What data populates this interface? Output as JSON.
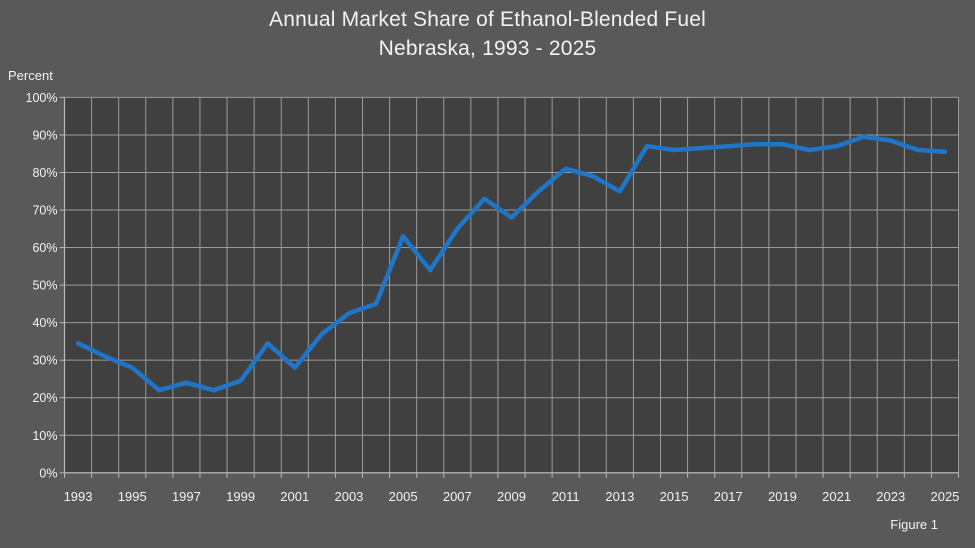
{
  "title": {
    "line1": "Annual Market Share of Ethanol-Blended Fuel",
    "line2": "Nebraska, 1993 - 2025"
  },
  "y_axis_label": "Percent",
  "figure_caption": "Figure 1",
  "colors": {
    "background": "#595959",
    "plot_background": "#404040",
    "gridline": "#9b9b9b",
    "axis_line": "#b8b8b8",
    "text": "#f2f2f2",
    "line": "#1f76c8"
  },
  "chart_data": {
    "type": "line",
    "title": "Annual Market Share of Ethanol-Blended Fuel",
    "subtitle": "Nebraska, 1993 - 2025",
    "xlabel": "",
    "ylabel": "Percent",
    "ylim": [
      0,
      100
    ],
    "y_tick_step": 10,
    "y_tick_labels": [
      "0%",
      "10%",
      "20%",
      "30%",
      "40%",
      "50%",
      "60%",
      "70%",
      "80%",
      "90%",
      "100%"
    ],
    "x_tick_labels": [
      1993,
      1995,
      1997,
      1999,
      2001,
      2003,
      2005,
      2007,
      2009,
      2011,
      2013,
      2015,
      2017,
      2019,
      2021,
      2023,
      2025
    ],
    "grid": true,
    "legend": false,
    "x": [
      1993,
      1994,
      1995,
      1996,
      1997,
      1998,
      1999,
      2000,
      2001,
      2002,
      2003,
      2004,
      2005,
      2006,
      2007,
      2008,
      2009,
      2010,
      2011,
      2012,
      2013,
      2014,
      2015,
      2016,
      2017,
      2018,
      2019,
      2020,
      2021,
      2022,
      2023,
      2024,
      2025
    ],
    "values": [
      34.5,
      31,
      28,
      22,
      24,
      22,
      24.5,
      34.5,
      28,
      37,
      42.5,
      45,
      63,
      54,
      65,
      73,
      68,
      75,
      81,
      79,
      75,
      87,
      86,
      86.5,
      87,
      87.5,
      87.5,
      86,
      87,
      89.5,
      88.5,
      86,
      85.5
    ]
  }
}
